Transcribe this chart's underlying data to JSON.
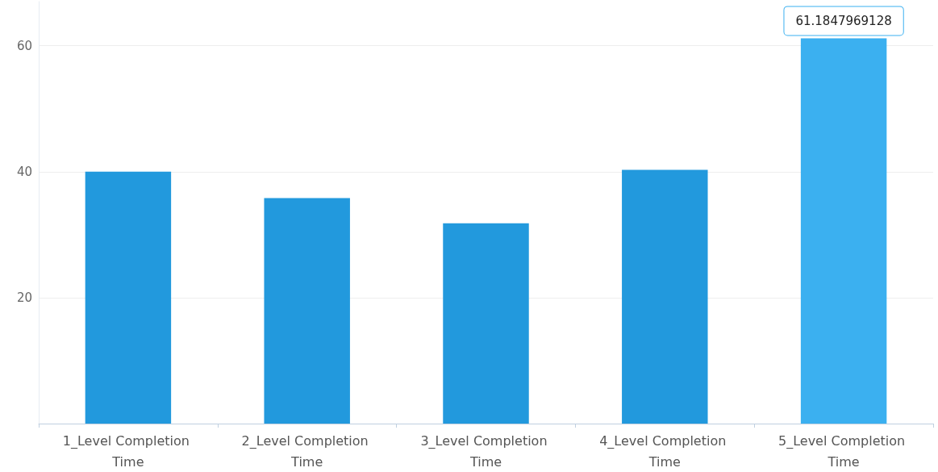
{
  "chart_data": {
    "type": "bar",
    "categories": [
      "1_Level Completion Time",
      "2_Level Completion Time",
      "3_Level Completion Time",
      "4_Level Completion Time",
      "5_Level Completion Time"
    ],
    "values": [
      40.0,
      35.8,
      31.8,
      40.3,
      61.1847969128
    ],
    "colors": [
      "#2299dd",
      "#2299dd",
      "#2299dd",
      "#2299dd",
      "#3bb0f0"
    ],
    "value_labels": [
      null,
      null,
      null,
      null,
      "61.1847969128"
    ],
    "ylim": [
      0,
      67
    ],
    "yticks": [
      20,
      40,
      60
    ],
    "grid": "y"
  }
}
